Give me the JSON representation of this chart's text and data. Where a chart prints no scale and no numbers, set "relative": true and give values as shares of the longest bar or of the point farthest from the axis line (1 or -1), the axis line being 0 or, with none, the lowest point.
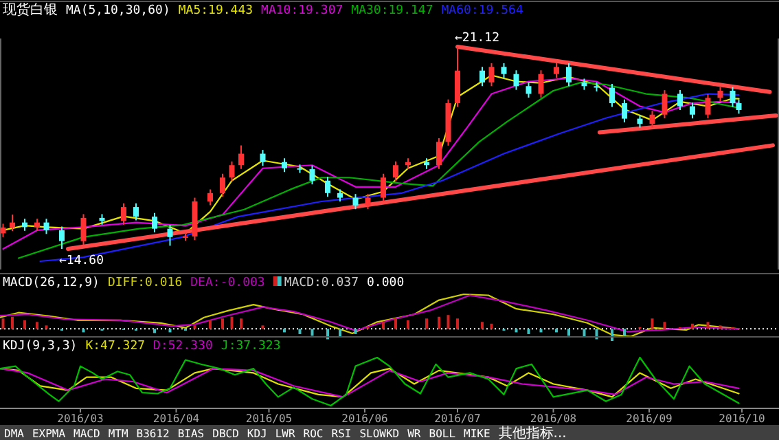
{
  "chart_data": [
    {
      "type": "candlestick",
      "title": "现货白银",
      "subtitle": "MA(5,10,30,60)",
      "xlim": [
        "2016-02-04",
        "2016-10-13"
      ],
      "tick_labels": false,
      "x": [
        "2016-02-05",
        "2016-02-08",
        "2016-02-12",
        "2016-02-16",
        "2016-02-19",
        "2016-02-24",
        "2016-03-02",
        "2016-03-08",
        "2016-03-15",
        "2016-03-19",
        "2016-03-25",
        "2016-03-30",
        "2016-04-04",
        "2016-04-07",
        "2016-04-12",
        "2016-04-16",
        "2016-04-19",
        "2016-04-22",
        "2016-04-29",
        "2016-05-06",
        "2016-05-11",
        "2016-05-15",
        "2016-05-20",
        "2016-05-24",
        "2016-05-29",
        "2016-06-02",
        "2016-06-07",
        "2016-06-11",
        "2016-06-15",
        "2016-06-21",
        "2016-06-25",
        "2016-06-28",
        "2016-07-01",
        "2016-07-09",
        "2016-07-12",
        "2016-07-16",
        "2016-07-20",
        "2016-07-24",
        "2016-07-28",
        "2016-08-02",
        "2016-08-06",
        "2016-08-11",
        "2016-08-15",
        "2016-08-20",
        "2016-08-24",
        "2016-08-29",
        "2016-09-02",
        "2016-09-06",
        "2016-09-11",
        "2016-09-15",
        "2016-09-20",
        "2016-09-24",
        "2016-09-28",
        "2016-09-30"
      ],
      "ohlc": [
        [
          15.1,
          15.41,
          14.98,
          15.29
        ],
        [
          15.29,
          15.7,
          15.17,
          15.45
        ],
        [
          15.45,
          15.57,
          15.18,
          15.3
        ],
        [
          15.3,
          15.57,
          15.18,
          15.45
        ],
        [
          15.45,
          15.57,
          15.08,
          15.2
        ],
        [
          15.2,
          15.32,
          14.6,
          14.85
        ],
        [
          14.85,
          15.72,
          14.73,
          15.6
        ],
        [
          15.6,
          15.72,
          15.38,
          15.5
        ],
        [
          15.5,
          16.07,
          15.38,
          15.95
        ],
        [
          15.95,
          16.07,
          15.52,
          15.64
        ],
        [
          15.64,
          15.76,
          15.13,
          15.25
        ],
        [
          15.25,
          15.37,
          14.7,
          14.98
        ],
        [
          14.98,
          15.12,
          14.86,
          15.0
        ],
        [
          15.0,
          16.25,
          14.88,
          16.13
        ],
        [
          16.13,
          16.52,
          16.01,
          16.4
        ],
        [
          16.4,
          17.02,
          16.28,
          16.9
        ],
        [
          16.9,
          17.42,
          16.78,
          17.3
        ],
        [
          17.3,
          17.94,
          17.18,
          17.67
        ],
        [
          17.67,
          17.79,
          17.28,
          17.4
        ],
        [
          17.4,
          17.52,
          17.08,
          17.2
        ],
        [
          17.2,
          17.32,
          17.05,
          17.17
        ],
        [
          17.17,
          17.29,
          16.68,
          16.8
        ],
        [
          16.8,
          16.92,
          16.28,
          16.4
        ],
        [
          16.4,
          16.52,
          16.13,
          16.25
        ],
        [
          16.25,
          16.37,
          15.88,
          16.0
        ],
        [
          16.0,
          16.37,
          15.88,
          16.25
        ],
        [
          16.25,
          17.02,
          16.13,
          16.9
        ],
        [
          16.9,
          17.42,
          16.78,
          17.3
        ],
        [
          17.3,
          17.52,
          17.18,
          17.4
        ],
        [
          17.4,
          17.52,
          17.18,
          17.3
        ],
        [
          17.3,
          18.17,
          17.18,
          18.05
        ],
        [
          18.05,
          19.42,
          17.93,
          19.3
        ],
        [
          19.3,
          21.12,
          19.18,
          20.35
        ],
        [
          20.35,
          20.47,
          19.85,
          19.97
        ],
        [
          19.97,
          20.59,
          19.85,
          20.47
        ],
        [
          20.47,
          20.59,
          20.12,
          20.24
        ],
        [
          20.24,
          20.36,
          19.73,
          19.85
        ],
        [
          19.85,
          19.97,
          19.48,
          19.6
        ],
        [
          19.6,
          20.36,
          19.48,
          20.24
        ],
        [
          20.24,
          20.59,
          20.12,
          20.47
        ],
        [
          20.47,
          20.59,
          19.85,
          19.97
        ],
        [
          19.97,
          20.09,
          19.73,
          19.85
        ],
        [
          19.85,
          19.97,
          19.68,
          19.8
        ],
        [
          19.8,
          19.92,
          19.18,
          19.3
        ],
        [
          19.3,
          19.42,
          18.68,
          18.8
        ],
        [
          18.8,
          18.92,
          18.51,
          18.63
        ],
        [
          18.63,
          19.05,
          18.51,
          18.93
        ],
        [
          18.93,
          19.72,
          18.81,
          19.6
        ],
        [
          19.6,
          19.72,
          19.08,
          19.2
        ],
        [
          19.2,
          19.32,
          18.81,
          18.93
        ],
        [
          18.93,
          19.59,
          18.81,
          19.47
        ],
        [
          19.47,
          19.82,
          19.35,
          19.7
        ],
        [
          19.7,
          19.82,
          19.18,
          19.3
        ],
        [
          19.3,
          19.42,
          18.96,
          19.08
        ]
      ],
      "colors": [
        "#ff3333",
        "#ff3333",
        "#54fcfc",
        "#ff3333",
        "#54fcfc",
        "#54fcfc",
        "#ff3333",
        "#54fcfc",
        "#ff3333",
        "#54fcfc",
        "#54fcfc",
        "#54fcfc",
        "#ff3333",
        "#ff3333",
        "#ff3333",
        "#ff3333",
        "#ff3333",
        "#ff3333",
        "#54fcfc",
        "#54fcfc",
        "#54fcfc",
        "#54fcfc",
        "#54fcfc",
        "#54fcfc",
        "#54fcfc",
        "#ff3333",
        "#ff3333",
        "#ff3333",
        "#ff3333",
        "#54fcfc",
        "#ff3333",
        "#ff3333",
        "#ff3333",
        "#54fcfc",
        "#ff3333",
        "#54fcfc",
        "#54fcfc",
        "#54fcfc",
        "#ff3333",
        "#ff3333",
        "#54fcfc",
        "#54fcfc",
        "#54fcfc",
        "#54fcfc",
        "#54fcfc",
        "#54fcfc",
        "#ff3333",
        "#ff3333",
        "#54fcfc",
        "#54fcfc",
        "#ff3333",
        "#ff3333",
        "#54fcfc",
        "#54fcfc"
      ],
      "series": [
        {
          "name": "MA5:19.443",
          "type": "line",
          "color": "#e6e600",
          "x": [
            "2016-02-05",
            "2016-02-12",
            "2016-02-19",
            "2016-03-02",
            "2016-03-15",
            "2016-03-25",
            "2016-04-04",
            "2016-04-12",
            "2016-04-19",
            "2016-04-29",
            "2016-05-11",
            "2016-05-20",
            "2016-05-29",
            "2016-06-07",
            "2016-06-15",
            "2016-06-25",
            "2016-07-01",
            "2016-07-12",
            "2016-07-20",
            "2016-07-28",
            "2016-08-06",
            "2016-08-15",
            "2016-08-24",
            "2016-09-02",
            "2016-09-11",
            "2016-09-20",
            "2016-09-28",
            "2016-09-30"
          ],
          "values": [
            15.2,
            15.35,
            15.3,
            15.25,
            15.65,
            15.5,
            15.1,
            15.8,
            16.8,
            17.45,
            17.25,
            16.7,
            16.2,
            16.45,
            17.2,
            17.6,
            19.5,
            20.2,
            20.0,
            19.95,
            20.15,
            19.9,
            19.1,
            18.75,
            19.35,
            19.2,
            19.45,
            19.443
          ]
        },
        {
          "name": "MA10:19.307",
          "type": "line",
          "color": "#e000e0",
          "x": [
            "2016-02-05",
            "2016-02-16",
            "2016-03-02",
            "2016-03-19",
            "2016-04-04",
            "2016-04-16",
            "2016-04-29",
            "2016-05-15",
            "2016-05-29",
            "2016-06-11",
            "2016-06-25",
            "2016-07-04",
            "2016-07-12",
            "2016-07-24",
            "2016-08-06",
            "2016-08-15",
            "2016-08-29",
            "2016-09-06",
            "2016-09-15",
            "2016-09-24",
            "2016-09-30"
          ],
          "values": [
            14.6,
            15.2,
            15.3,
            15.45,
            15.35,
            15.7,
            17.2,
            17.3,
            16.6,
            16.6,
            17.3,
            18.5,
            19.6,
            20.0,
            20.1,
            20.0,
            19.2,
            19.0,
            19.3,
            19.35,
            19.307
          ]
        },
        {
          "name": "MA30:19.147",
          "type": "line",
          "color": "#00b000",
          "x": [
            "2016-02-10",
            "2016-03-02",
            "2016-03-20",
            "2016-04-03",
            "2016-04-23",
            "2016-05-08",
            "2016-05-18",
            "2016-05-27",
            "2016-06-13",
            "2016-06-23",
            "2016-07-08",
            "2016-07-17",
            "2016-08-01",
            "2016-08-10",
            "2016-08-18",
            "2016-08-31",
            "2016-09-14",
            "2016-09-30"
          ],
          "values": [
            14.3,
            14.98,
            15.25,
            15.37,
            15.87,
            16.52,
            16.9,
            16.9,
            16.71,
            16.63,
            18.05,
            18.7,
            19.7,
            19.97,
            19.9,
            19.6,
            19.47,
            19.147
          ]
        },
        {
          "name": "MA60:19.564",
          "type": "line",
          "color": "#2020ff",
          "x": [
            "2016-02-17",
            "2016-03-02",
            "2016-04-03",
            "2016-04-21",
            "2016-05-18",
            "2016-06-13",
            "2016-06-26",
            "2016-07-16",
            "2016-08-03",
            "2016-08-18",
            "2016-09-05",
            "2016-09-20",
            "2016-09-30"
          ],
          "values": [
            14.2,
            14.33,
            14.98,
            15.64,
            16.13,
            16.4,
            16.8,
            17.67,
            18.32,
            18.82,
            19.3,
            19.6,
            19.564
          ]
        },
        {
          "type": "line",
          "color": "#ff4848",
          "x": [
            "2016-02-26",
            "2016-10-11"
          ],
          "values": [
            14.6,
            17.94
          ]
        },
        {
          "type": "line",
          "color": "#ff4848",
          "x": [
            "2016-07-01",
            "2016-10-10"
          ],
          "values": [
            21.12,
            19.66
          ]
        },
        {
          "type": "line",
          "color": "#ff4848",
          "x": [
            "2016-08-16",
            "2016-10-12"
          ],
          "values": [
            18.36,
            18.9
          ]
        }
      ],
      "annotations": [
        {
          "text": "←21.12",
          "x": "2016-07-01",
          "y": 21.12
        },
        {
          "text": "←14.60",
          "x": "2016-02-24",
          "y": 14.6
        }
      ]
    },
    {
      "type": "line",
      "title": "MACD(26,12,9)",
      "relative": true,
      "xlim": [
        "2016-02-04",
        "2016-10-13"
      ],
      "tick_labels": false,
      "series": [
        {
          "name": "DIFF:0.016",
          "type": "line",
          "color": "#d0d000",
          "x": [
            "2016-02-04",
            "2016-02-10",
            "2016-02-20",
            "2016-02-29",
            "2016-03-14",
            "2016-03-27",
            "2016-04-04",
            "2016-04-10",
            "2016-04-18",
            "2016-04-26",
            "2016-05-02",
            "2016-05-12",
            "2016-05-21",
            "2016-05-28",
            "2016-06-05",
            "2016-06-17",
            "2016-06-25",
            "2016-07-03",
            "2016-07-11",
            "2016-07-20",
            "2016-08-01",
            "2016-08-12",
            "2016-08-20",
            "2016-08-26",
            "2016-09-02",
            "2016-09-13",
            "2016-09-17",
            "2016-09-30"
          ],
          "values": [
            0.33,
            0.47,
            0.37,
            0.25,
            0.25,
            0.17,
            0.03,
            0.33,
            0.53,
            0.7,
            0.58,
            0.42,
            0.08,
            -0.13,
            0.2,
            0.42,
            0.83,
            1,
            0.97,
            0.58,
            0.42,
            0.17,
            -0.17,
            -0.22,
            0.03,
            -0.03,
            0.12,
            0
          ]
        },
        {
          "name": "DEA:-0.003",
          "type": "line",
          "color": "#c000c0",
          "x": [
            "2016-02-04",
            "2016-02-13",
            "2016-02-25",
            "2016-03-14",
            "2016-03-31",
            "2016-04-07",
            "2016-04-17",
            "2016-04-29",
            "2016-05-09",
            "2016-05-21",
            "2016-05-29",
            "2016-06-09",
            "2016-06-22",
            "2016-07-05",
            "2016-07-16",
            "2016-07-30",
            "2016-08-12",
            "2016-08-25",
            "2016-09-05",
            "2016-09-16",
            "2016-09-30"
          ],
          "values": [
            0.38,
            0.42,
            0.28,
            0.25,
            0.08,
            0.13,
            0.37,
            0.63,
            0.5,
            0.2,
            -0.05,
            0.25,
            0.53,
            0.97,
            0.8,
            0.53,
            0.25,
            -0.08,
            -0.03,
            0.05,
            0
          ]
        },
        {
          "name": "MACD:0.037",
          "type": "bar",
          "x": [
            "2016-02-05",
            "2016-02-08",
            "2016-02-12",
            "2016-02-16",
            "2016-02-19",
            "2016-02-24",
            "2016-03-02",
            "2016-03-08",
            "2016-03-15",
            "2016-03-19",
            "2016-03-25",
            "2016-03-30",
            "2016-04-04",
            "2016-04-07",
            "2016-04-12",
            "2016-04-16",
            "2016-04-19",
            "2016-04-22",
            "2016-04-29",
            "2016-05-06",
            "2016-05-11",
            "2016-05-15",
            "2016-05-20",
            "2016-05-24",
            "2016-05-29",
            "2016-06-02",
            "2016-06-07",
            "2016-06-11",
            "2016-06-15",
            "2016-06-21",
            "2016-06-25",
            "2016-06-28",
            "2016-07-01",
            "2016-07-09",
            "2016-07-12",
            "2016-07-16",
            "2016-07-20",
            "2016-07-24",
            "2016-07-28",
            "2016-08-02",
            "2016-08-06",
            "2016-08-11",
            "2016-08-15",
            "2016-08-20",
            "2016-08-24",
            "2016-08-29",
            "2016-09-02",
            "2016-09-06",
            "2016-09-11",
            "2016-09-15",
            "2016-09-20",
            "2016-09-24",
            "2016-09-28",
            "2016-09-30"
          ],
          "values": [
            0.3,
            0.35,
            0.25,
            0.2,
            0.1,
            -0.05,
            -0.1,
            -0.05,
            -0.03,
            -0.05,
            -0.12,
            -0.1,
            -0.05,
            0.1,
            0.25,
            0.3,
            0.35,
            0.3,
            0.1,
            -0.1,
            -0.15,
            -0.2,
            -0.3,
            -0.25,
            -0.15,
            0.05,
            0.2,
            0.3,
            0.25,
            0.3,
            0.35,
            0.4,
            0.3,
            0.2,
            0.15,
            -0.05,
            -0.1,
            -0.15,
            -0.1,
            -0.1,
            -0.2,
            -0.25,
            -0.3,
            -0.35,
            -0.2,
            0.05,
            0.3,
            0.2,
            0.05,
            0.15,
            0.2,
            0.1,
            0.05,
            0.02
          ],
          "colors": [
            "#d02020",
            "#d02020",
            "#d02020",
            "#d02020",
            "#d02020",
            "#40c0c0",
            "#40c0c0",
            "#40c0c0",
            "#40c0c0",
            "#40c0c0",
            "#40c0c0",
            "#40c0c0",
            "#40c0c0",
            "#d02020",
            "#d02020",
            "#d02020",
            "#d02020",
            "#d02020",
            "#d02020",
            "#40c0c0",
            "#40c0c0",
            "#40c0c0",
            "#40c0c0",
            "#40c0c0",
            "#40c0c0",
            "#d02020",
            "#d02020",
            "#d02020",
            "#d02020",
            "#d02020",
            "#d02020",
            "#d02020",
            "#d02020",
            "#d02020",
            "#d02020",
            "#40c0c0",
            "#40c0c0",
            "#40c0c0",
            "#40c0c0",
            "#40c0c0",
            "#40c0c0",
            "#40c0c0",
            "#40c0c0",
            "#40c0c0",
            "#40c0c0",
            "#d02020",
            "#d02020",
            "#d02020",
            "#d02020",
            "#d02020",
            "#d02020",
            "#d02020",
            "#d02020",
            "#d02020"
          ]
        }
      ],
      "ref_lines": [
        {
          "axis": "y",
          "value": 0,
          "label": "0.000",
          "color": "#ffffff",
          "line_style": "dotted"
        }
      ]
    },
    {
      "type": "line",
      "title": "KDJ(9,3,3)",
      "relative": true,
      "xlim": [
        "2016-02-04",
        "2016-10-13"
      ],
      "tick_labels": "x",
      "xticks": [
        {
          "value": "2016-03-01",
          "label": "2016/03"
        },
        {
          "value": "2016-04-01",
          "label": "2016/04"
        },
        {
          "value": "2016-05-01",
          "label": "2016/05"
        },
        {
          "value": "2016-06-01",
          "label": "2016/06"
        },
        {
          "value": "2016-07-01",
          "label": "2016/07"
        },
        {
          "value": "2016-08-01",
          "label": "2016/08"
        },
        {
          "value": "2016-09-01",
          "label": "2016/09"
        },
        {
          "value": "2016-10-01",
          "label": "2016/10"
        }
      ],
      "series": [
        {
          "name": "K:47.327",
          "color": "#e0e000",
          "x": [
            "2016-02-04",
            "2016-02-10",
            "2016-02-17",
            "2016-02-26",
            "2016-03-03",
            "2016-03-11",
            "2016-03-19",
            "2016-03-29",
            "2016-04-07",
            "2016-04-13",
            "2016-04-26",
            "2016-05-04",
            "2016-05-17",
            "2016-05-25",
            "2016-06-03",
            "2016-06-09",
            "2016-06-17",
            "2016-06-25",
            "2016-07-11",
            "2016-07-17",
            "2016-07-24",
            "2016-08-01",
            "2016-08-12",
            "2016-08-20",
            "2016-08-29",
            "2016-09-08",
            "2016-09-16",
            "2016-09-30"
          ],
          "values": [
            0.77,
            0.73,
            0.41,
            0.32,
            0.59,
            0.59,
            0.36,
            0.32,
            0.68,
            0.77,
            0.68,
            0.45,
            0.23,
            0.18,
            0.68,
            0.77,
            0.45,
            0.73,
            0.59,
            0.41,
            0.68,
            0.45,
            0.32,
            0.18,
            0.68,
            0.36,
            0.55,
            0.25
          ]
        },
        {
          "name": "D:52.330",
          "color": "#d000d0",
          "x": [
            "2016-02-04",
            "2016-02-13",
            "2016-02-26",
            "2016-03-09",
            "2016-03-18",
            "2016-03-29",
            "2016-04-13",
            "2016-04-26",
            "2016-05-09",
            "2016-05-25",
            "2016-06-09",
            "2016-06-19",
            "2016-06-28",
            "2016-07-11",
            "2016-07-22",
            "2016-08-12",
            "2016-08-21",
            "2016-08-31",
            "2016-09-09",
            "2016-09-19",
            "2016-09-30"
          ],
          "values": [
            0.77,
            0.68,
            0.32,
            0.55,
            0.5,
            0.27,
            0.77,
            0.73,
            0.41,
            0.18,
            0.73,
            0.5,
            0.68,
            0.59,
            0.45,
            0.32,
            0.23,
            0.59,
            0.45,
            0.5,
            0.36
          ]
        },
        {
          "name": "J:37.323",
          "color": "#00c000",
          "x": [
            "2016-02-04",
            "2016-02-09",
            "2016-02-13",
            "2016-02-20",
            "2016-02-23",
            "2016-02-28",
            "2016-03-01",
            "2016-03-05",
            "2016-03-08",
            "2016-03-13",
            "2016-03-17",
            "2016-03-21",
            "2016-03-26",
            "2016-03-30",
            "2016-04-04",
            "2016-04-09",
            "2016-04-15",
            "2016-04-20",
            "2016-04-26",
            "2016-04-30",
            "2016-05-04",
            "2016-05-09",
            "2016-05-15",
            "2016-05-21",
            "2016-05-26",
            "2016-05-29",
            "2016-06-05",
            "2016-06-09",
            "2016-06-14",
            "2016-06-19",
            "2016-06-24",
            "2016-06-28",
            "2016-07-05",
            "2016-07-11",
            "2016-07-16",
            "2016-07-20",
            "2016-07-25",
            "2016-08-01",
            "2016-08-12",
            "2016-08-18",
            "2016-08-23",
            "2016-08-29",
            "2016-09-03",
            "2016-09-09",
            "2016-09-14",
            "2016-09-19",
            "2016-09-30"
          ],
          "values": [
            0.77,
            0.82,
            0.59,
            0.23,
            0.09,
            0.41,
            0.82,
            0.68,
            0.55,
            0.71,
            0.64,
            0.27,
            0.25,
            0.36,
            0.95,
            0.86,
            0.77,
            0.64,
            0.77,
            0.45,
            0.18,
            0.38,
            0.14,
            0,
            0.23,
            0.82,
            1,
            0.82,
            0.45,
            0.25,
            0.86,
            0.59,
            0.68,
            0.55,
            0.23,
            0.77,
            0.86,
            0.18,
            0.32,
            0.09,
            0.23,
            1,
            0.55,
            0.14,
            0.82,
            0.45,
            0.05
          ]
        }
      ],
      "annotations": [
        "DMA",
        "EXPMA",
        "MACD",
        "MTM",
        "B3612",
        "BIAS",
        "DBCD",
        "KDJ",
        "LWR",
        "ROC",
        "RSI",
        "SLOWKD",
        "WR",
        "BOLL",
        "MIKE",
        "其他指标..."
      ]
    }
  ]
}
